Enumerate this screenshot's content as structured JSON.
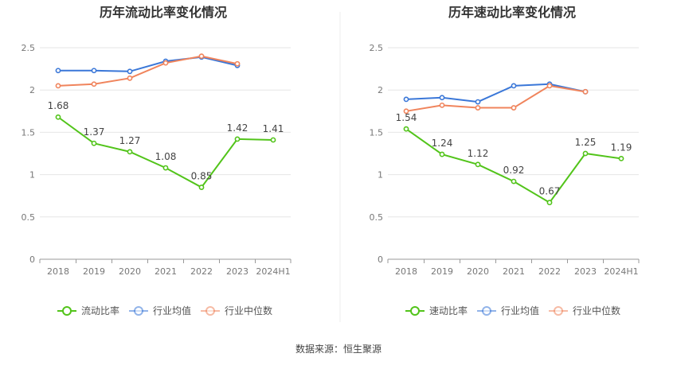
{
  "chart_data": [
    {
      "type": "line",
      "title": "历年流动比率变化情况",
      "categories": [
        "2018",
        "2019",
        "2020",
        "2021",
        "2022",
        "2023",
        "2024H1"
      ],
      "ylim": [
        0,
        2.5
      ],
      "yticks": [
        "0",
        "0.5",
        "1",
        "1.5",
        "2",
        "2.5"
      ],
      "grid": true,
      "legend_position": "bottom",
      "series": [
        {
          "name": "流动比率",
          "color": "#52c41a",
          "values": [
            1.68,
            1.37,
            1.27,
            1.08,
            0.85,
            1.42,
            1.41
          ],
          "labels": [
            "1.68",
            "1.37",
            "1.27",
            "1.08",
            "0.85",
            "1.42",
            "1.41"
          ]
        },
        {
          "name": "行业均值",
          "color": "#3a77d8",
          "values": [
            2.23,
            2.23,
            2.22,
            2.34,
            2.39,
            2.29,
            null
          ]
        },
        {
          "name": "行业中位数",
          "color": "#f0845c",
          "values": [
            2.05,
            2.07,
            2.14,
            2.32,
            2.4,
            2.31,
            null
          ]
        }
      ]
    },
    {
      "type": "line",
      "title": "历年速动比率变化情况",
      "categories": [
        "2018",
        "2019",
        "2020",
        "2021",
        "2022",
        "2023",
        "2024H1"
      ],
      "ylim": [
        0,
        2.5
      ],
      "yticks": [
        "0",
        "0.5",
        "1",
        "1.5",
        "2",
        "2.5"
      ],
      "grid": true,
      "legend_position": "bottom",
      "series": [
        {
          "name": "速动比率",
          "color": "#52c41a",
          "values": [
            1.54,
            1.24,
            1.12,
            0.92,
            0.67,
            1.25,
            1.19
          ],
          "labels": [
            "1.54",
            "1.24",
            "1.12",
            "0.92",
            "0.67",
            "1.25",
            "1.19"
          ]
        },
        {
          "name": "行业均值",
          "color": "#3a77d8",
          "values": [
            1.89,
            1.91,
            1.86,
            2.05,
            2.07,
            1.98,
            null
          ]
        },
        {
          "name": "行业中位数",
          "color": "#f0845c",
          "values": [
            1.75,
            1.82,
            1.79,
            1.79,
            2.05,
            1.98,
            null
          ]
        }
      ]
    }
  ],
  "source_text": "数据来源：恒生聚源"
}
